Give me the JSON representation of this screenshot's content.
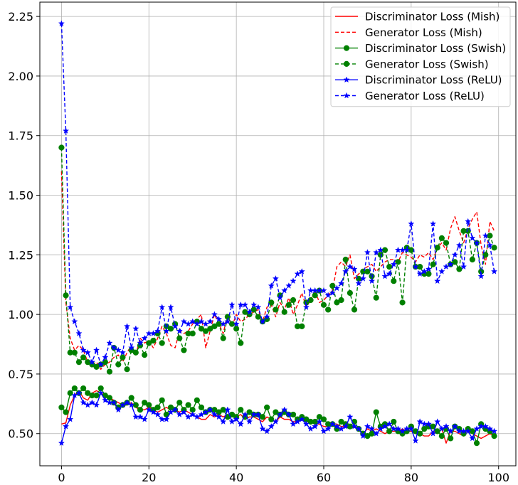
{
  "chart_data": {
    "type": "line",
    "title": "",
    "xlabel": "",
    "ylabel": "",
    "xlim": [
      -4.95,
      103.95
    ],
    "ylim": [
      0.365,
      2.31
    ],
    "grid": true,
    "legend_position": "top-right",
    "x_ticks": [
      "0",
      "20",
      "40",
      "60",
      "80",
      "100"
    ],
    "y_ticks": [
      "0.50",
      "0.75",
      "1.00",
      "1.25",
      "1.50",
      "1.75",
      "2.00",
      "2.25"
    ],
    "x": [
      0,
      1,
      2,
      3,
      4,
      5,
      6,
      7,
      8,
      9,
      10,
      11,
      12,
      13,
      14,
      15,
      16,
      17,
      18,
      19,
      20,
      21,
      22,
      23,
      24,
      25,
      26,
      27,
      28,
      29,
      30,
      31,
      32,
      33,
      34,
      35,
      36,
      37,
      38,
      39,
      40,
      41,
      42,
      43,
      44,
      45,
      46,
      47,
      48,
      49,
      50,
      51,
      52,
      53,
      54,
      55,
      56,
      57,
      58,
      59,
      60,
      61,
      62,
      63,
      64,
      65,
      66,
      67,
      68,
      69,
      70,
      71,
      72,
      73,
      74,
      75,
      76,
      77,
      78,
      79,
      80,
      81,
      82,
      83,
      84,
      85,
      86,
      87,
      88,
      89,
      90,
      91,
      92,
      93,
      94,
      95,
      96,
      97,
      98,
      99
    ],
    "series": [
      {
        "name": "Discriminator Loss (Mish)",
        "color": "#ff0000",
        "linestyle": "solid",
        "marker": "none",
        "values": [
          0.54,
          0.545,
          0.62,
          0.66,
          0.68,
          0.65,
          0.64,
          0.67,
          0.68,
          0.67,
          0.66,
          0.65,
          0.64,
          0.63,
          0.62,
          0.62,
          0.63,
          0.61,
          0.6,
          0.6,
          0.61,
          0.6,
          0.59,
          0.6,
          0.61,
          0.6,
          0.6,
          0.59,
          0.6,
          0.59,
          0.58,
          0.57,
          0.56,
          0.56,
          0.58,
          0.57,
          0.58,
          0.57,
          0.58,
          0.57,
          0.57,
          0.58,
          0.56,
          0.57,
          0.57,
          0.56,
          0.55,
          0.57,
          0.56,
          0.55,
          0.57,
          0.56,
          0.56,
          0.55,
          0.55,
          0.56,
          0.55,
          0.55,
          0.54,
          0.54,
          0.53,
          0.53,
          0.54,
          0.54,
          0.53,
          0.53,
          0.52,
          0.53,
          0.52,
          0.5,
          0.52,
          0.51,
          0.52,
          0.51,
          0.5,
          0.51,
          0.51,
          0.51,
          0.52,
          0.51,
          0.51,
          0.5,
          0.5,
          0.49,
          0.49,
          0.51,
          0.5,
          0.52,
          0.46,
          0.51,
          0.51,
          0.5,
          0.49,
          0.51,
          0.5,
          0.49,
          0.48,
          0.49,
          0.5,
          0.49
        ]
      },
      {
        "name": "Generator Loss (Mish)",
        "color": "#ff0000",
        "linestyle": "dashed",
        "marker": "none",
        "values": [
          1.6,
          1.05,
          0.9,
          0.85,
          0.87,
          0.85,
          0.8,
          0.79,
          0.8,
          0.77,
          0.79,
          0.8,
          0.82,
          0.83,
          0.8,
          0.84,
          0.87,
          0.83,
          0.9,
          0.88,
          0.89,
          0.86,
          0.9,
          0.95,
          0.92,
          0.87,
          0.86,
          0.93,
          0.92,
          0.93,
          0.96,
          0.98,
          1.0,
          0.86,
          0.93,
          1.0,
          0.96,
          0.92,
          1.0,
          0.95,
          1.0,
          0.97,
          0.98,
          1.0,
          1.01,
          1.02,
          0.97,
          1.03,
          1.04,
          0.99,
          1.05,
          1.02,
          1.07,
          1.0,
          1.04,
          1.09,
          1.03,
          1.06,
          1.1,
          1.05,
          1.06,
          1.08,
          1.1,
          1.2,
          1.22,
          1.2,
          1.25,
          1.15,
          1.17,
          1.19,
          1.2,
          1.21,
          1.18,
          1.2,
          1.22,
          1.23,
          1.23,
          1.22,
          1.26,
          1.25,
          1.24,
          1.22,
          1.25,
          1.24,
          1.26,
          1.23,
          1.28,
          1.3,
          1.27,
          1.36,
          1.41,
          1.35,
          1.3,
          1.36,
          1.4,
          1.43,
          1.29,
          1.21,
          1.39,
          1.35
        ]
      },
      {
        "name": "Discriminator Loss (Swish)",
        "color": "#008000",
        "linestyle": "solid",
        "marker": "circle",
        "values": [
          0.61,
          0.59,
          0.67,
          0.69,
          0.67,
          0.69,
          0.67,
          0.66,
          0.66,
          0.69,
          0.66,
          0.65,
          0.63,
          0.61,
          0.62,
          0.63,
          0.65,
          0.62,
          0.6,
          0.63,
          0.62,
          0.6,
          0.61,
          0.64,
          0.58,
          0.61,
          0.6,
          0.63,
          0.6,
          0.62,
          0.6,
          0.64,
          0.61,
          0.59,
          0.6,
          0.6,
          0.59,
          0.6,
          0.57,
          0.58,
          0.57,
          0.6,
          0.57,
          0.59,
          0.58,
          0.58,
          0.57,
          0.61,
          0.56,
          0.59,
          0.58,
          0.59,
          0.58,
          0.58,
          0.56,
          0.57,
          0.56,
          0.55,
          0.55,
          0.57,
          0.56,
          0.54,
          0.54,
          0.52,
          0.55,
          0.54,
          0.53,
          0.55,
          0.52,
          0.5,
          0.49,
          0.5,
          0.59,
          0.53,
          0.54,
          0.51,
          0.55,
          0.51,
          0.5,
          0.51,
          0.53,
          0.51,
          0.5,
          0.52,
          0.53,
          0.53,
          0.51,
          0.49,
          0.52,
          0.48,
          0.53,
          0.52,
          0.5,
          0.52,
          0.51,
          0.46,
          0.54,
          0.52,
          0.51,
          0.49
        ]
      },
      {
        "name": "Generator Loss (Swish)",
        "color": "#008000",
        "linestyle": "dashed",
        "marker": "circle",
        "values": [
          1.7,
          1.08,
          0.84,
          0.84,
          0.8,
          0.82,
          0.8,
          0.79,
          0.78,
          0.79,
          0.8,
          0.76,
          0.86,
          0.79,
          0.82,
          0.77,
          0.85,
          0.84,
          0.87,
          0.83,
          0.88,
          0.89,
          0.92,
          0.88,
          0.95,
          0.94,
          0.96,
          0.9,
          0.85,
          0.92,
          0.92,
          0.97,
          0.94,
          0.93,
          0.94,
          0.95,
          0.96,
          0.9,
          0.99,
          0.96,
          0.94,
          0.88,
          1.01,
          1.0,
          1.02,
          0.99,
          0.97,
          0.98,
          1.05,
          1.02,
          1.08,
          1.01,
          1.04,
          1.06,
          0.95,
          0.95,
          1.05,
          1.06,
          1.08,
          1.1,
          1.04,
          1.02,
          1.12,
          1.05,
          1.06,
          1.23,
          1.09,
          1.02,
          1.15,
          1.18,
          1.18,
          1.16,
          1.07,
          1.25,
          1.27,
          1.2,
          1.14,
          1.22,
          1.05,
          1.28,
          1.27,
          1.2,
          1.2,
          1.17,
          1.17,
          1.21,
          1.28,
          1.32,
          1.3,
          1.21,
          1.22,
          1.19,
          1.35,
          1.35,
          1.23,
          1.3,
          1.18,
          1.25,
          1.33,
          1.28
        ]
      },
      {
        "name": "Discriminator Loss (ReLU)",
        "color": "#0000ff",
        "linestyle": "solid",
        "marker": "star",
        "values": [
          0.46,
          0.53,
          0.56,
          0.66,
          0.67,
          0.63,
          0.62,
          0.63,
          0.62,
          0.67,
          0.64,
          0.63,
          0.63,
          0.6,
          0.62,
          0.63,
          0.62,
          0.57,
          0.57,
          0.56,
          0.6,
          0.59,
          0.58,
          0.56,
          0.56,
          0.59,
          0.6,
          0.58,
          0.59,
          0.57,
          0.58,
          0.57,
          0.58,
          0.59,
          0.6,
          0.58,
          0.57,
          0.55,
          0.6,
          0.55,
          0.56,
          0.54,
          0.58,
          0.55,
          0.58,
          0.58,
          0.52,
          0.51,
          0.53,
          0.55,
          0.58,
          0.6,
          0.58,
          0.54,
          0.55,
          0.56,
          0.54,
          0.52,
          0.53,
          0.55,
          0.51,
          0.52,
          0.54,
          0.53,
          0.52,
          0.53,
          0.57,
          0.53,
          0.52,
          0.49,
          0.53,
          0.52,
          0.5,
          0.52,
          0.53,
          0.54,
          0.52,
          0.52,
          0.51,
          0.52,
          0.52,
          0.47,
          0.55,
          0.54,
          0.54,
          0.5,
          0.55,
          0.52,
          0.53,
          0.51,
          0.53,
          0.51,
          0.51,
          0.51,
          0.48,
          0.52,
          0.53,
          0.53,
          0.52,
          0.51
        ]
      },
      {
        "name": "Generator Loss (ReLU)",
        "color": "#0000ff",
        "linestyle": "dashed",
        "marker": "star",
        "values": [
          2.22,
          1.77,
          1.03,
          0.97,
          0.92,
          0.85,
          0.84,
          0.8,
          0.85,
          0.79,
          0.82,
          0.88,
          0.86,
          0.85,
          0.84,
          0.95,
          0.86,
          0.94,
          0.88,
          0.9,
          0.92,
          0.92,
          0.93,
          1.03,
          0.93,
          1.03,
          0.95,
          0.93,
          0.97,
          0.96,
          0.97,
          0.96,
          0.97,
          0.96,
          0.97,
          1.0,
          0.98,
          0.96,
          0.97,
          1.04,
          0.96,
          1.04,
          1.04,
          1.01,
          1.04,
          1.03,
          0.97,
          0.99,
          1.12,
          1.15,
          1.07,
          1.1,
          1.12,
          1.14,
          1.17,
          1.18,
          1.03,
          1.1,
          1.1,
          1.1,
          1.1,
          1.08,
          1.09,
          1.11,
          1.13,
          1.18,
          1.2,
          1.19,
          1.13,
          1.15,
          1.26,
          1.14,
          1.26,
          1.27,
          1.16,
          1.17,
          1.21,
          1.27,
          1.27,
          1.27,
          1.38,
          1.2,
          1.17,
          1.18,
          1.19,
          1.38,
          1.14,
          1.18,
          1.2,
          1.21,
          1.25,
          1.29,
          1.2,
          1.39,
          1.32,
          1.3,
          1.16,
          1.33,
          1.29,
          1.18
        ]
      }
    ]
  }
}
